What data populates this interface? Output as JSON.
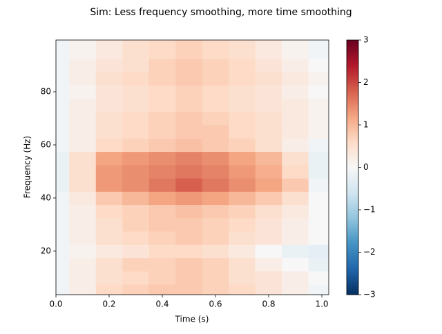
{
  "chart_data": {
    "type": "heatmap",
    "title": "Sim: Less frequency smoothing, more time smoothing",
    "x_label": "Time (s)",
    "y_label": "Frequency (Hz)",
    "x": [
      0,
      0.1,
      0.2,
      0.3,
      0.4,
      0.5,
      0.6,
      0.7,
      0.8,
      0.9,
      1.0
    ],
    "y": [
      5,
      10,
      15,
      20,
      25,
      30,
      35,
      40,
      45,
      50,
      55,
      60,
      65,
      70,
      75,
      80,
      85,
      90,
      95,
      100
    ],
    "values": [
      [
        -0.1,
        0.2,
        0.6,
        0.7,
        0.8,
        0.8,
        0.7,
        0.6,
        0.4,
        0.2,
        -0.1
      ],
      [
        -0.1,
        0.2,
        0.5,
        0.6,
        0.7,
        0.8,
        0.7,
        0.5,
        0.4,
        0.2,
        0.0
      ],
      [
        -0.1,
        0.2,
        0.5,
        0.7,
        0.7,
        0.8,
        0.7,
        0.5,
        0.2,
        0.0,
        -0.2
      ],
      [
        -0.1,
        0.1,
        0.3,
        0.4,
        0.6,
        0.6,
        0.5,
        0.3,
        0.0,
        -0.2,
        -0.3
      ],
      [
        -0.1,
        0.2,
        0.5,
        0.6,
        0.7,
        0.8,
        0.7,
        0.5,
        0.4,
        0.2,
        0.0
      ],
      [
        -0.1,
        0.2,
        0.5,
        0.7,
        0.8,
        0.8,
        0.7,
        0.6,
        0.4,
        0.2,
        0.0
      ],
      [
        -0.1,
        0.2,
        0.6,
        0.7,
        0.8,
        0.9,
        0.8,
        0.7,
        0.5,
        0.3,
        0.0
      ],
      [
        -0.1,
        0.3,
        0.8,
        1.0,
        1.2,
        1.3,
        1.2,
        1.0,
        0.8,
        0.5,
        0.0
      ],
      [
        -0.2,
        0.5,
        1.3,
        1.4,
        1.6,
        1.8,
        1.6,
        1.4,
        1.2,
        0.8,
        -0.1
      ],
      [
        -0.2,
        0.5,
        1.3,
        1.4,
        1.5,
        1.6,
        1.5,
        1.3,
        1.1,
        0.6,
        -0.2
      ],
      [
        -0.2,
        0.5,
        1.2,
        1.3,
        1.4,
        1.5,
        1.4,
        1.2,
        1.0,
        0.5,
        -0.2
      ],
      [
        -0.1,
        0.2,
        0.6,
        0.7,
        0.8,
        0.9,
        0.8,
        0.7,
        0.5,
        0.2,
        -0.1
      ],
      [
        -0.1,
        0.2,
        0.5,
        0.6,
        0.7,
        0.8,
        0.8,
        0.6,
        0.5,
        0.3,
        0.1
      ],
      [
        -0.1,
        0.2,
        0.5,
        0.6,
        0.7,
        0.8,
        0.7,
        0.6,
        0.5,
        0.3,
        0.1
      ],
      [
        -0.1,
        0.2,
        0.4,
        0.5,
        0.6,
        0.7,
        0.6,
        0.5,
        0.4,
        0.3,
        0.1
      ],
      [
        -0.1,
        0.1,
        0.4,
        0.5,
        0.6,
        0.7,
        0.6,
        0.5,
        0.4,
        0.2,
        0.0
      ],
      [
        -0.1,
        0.2,
        0.5,
        0.6,
        0.7,
        0.8,
        0.7,
        0.6,
        0.5,
        0.3,
        0.1
      ],
      [
        -0.1,
        0.2,
        0.4,
        0.5,
        0.7,
        0.8,
        0.7,
        0.6,
        0.4,
        0.2,
        0.0
      ],
      [
        -0.1,
        0.1,
        0.3,
        0.5,
        0.6,
        0.7,
        0.6,
        0.5,
        0.3,
        0.1,
        -0.1
      ],
      [
        -0.1,
        0.1,
        0.3,
        0.5,
        0.6,
        0.7,
        0.6,
        0.5,
        0.3,
        0.1,
        -0.1
      ]
    ],
    "xlim": [
      0,
      1.026
    ],
    "ylim": [
      3.6,
      99.5
    ],
    "xticks": [
      {
        "value": 0,
        "label": "0.0"
      },
      {
        "value": 0.2,
        "label": "0.2"
      },
      {
        "value": 0.4,
        "label": "0.4"
      },
      {
        "value": 0.6,
        "label": "0.6"
      },
      {
        "value": 0.8,
        "label": "0.8"
      },
      {
        "value": 1.0,
        "label": "1.0"
      }
    ],
    "yticks": [
      20,
      40,
      60,
      80
    ],
    "clim": [
      -3,
      3
    ],
    "cticks": [
      {
        "value": -3,
        "label": "−3"
      },
      {
        "value": -2,
        "label": "−2"
      },
      {
        "value": -1,
        "label": "−1"
      },
      0,
      1,
      2,
      3
    ],
    "colormap": [
      "#053061",
      "#2166ac",
      "#4393c3",
      "#92c5de",
      "#d1e5f0",
      "#f7f7f7",
      "#fddbc7",
      "#f4a582",
      "#d6604d",
      "#b2182b",
      "#67001f"
    ]
  }
}
